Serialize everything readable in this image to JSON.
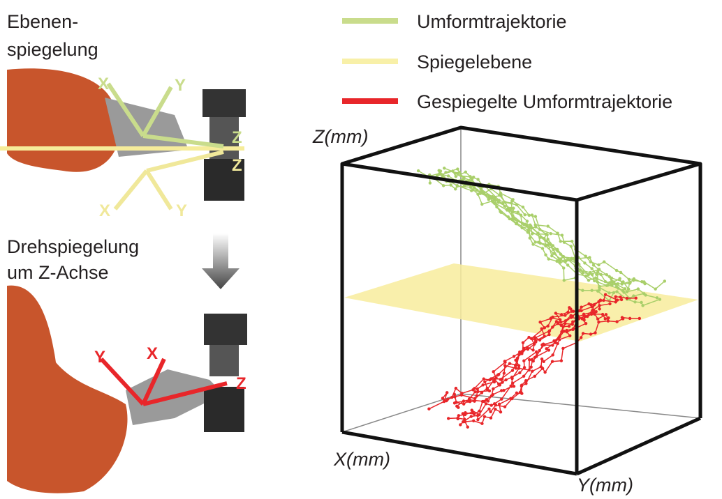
{
  "left": {
    "top_caption": [
      "Ebenen-",
      "spiegelung"
    ],
    "top_axes": [
      "X",
      "Y",
      "Z",
      "Z",
      "X",
      "Y"
    ],
    "bottom_caption": [
      "Drehspiegelung",
      "um Z-Achse"
    ],
    "bottom_axes": [
      "Y",
      "X",
      "Z"
    ]
  },
  "legend": [
    "Umformtrajektorie",
    "Spiegelebene",
    "Gespiegelte Umformtrajektorie"
  ],
  "plot": {
    "z_label": "Z(mm)",
    "x_label": "X(mm)",
    "y_label": "Y(mm)"
  }
}
